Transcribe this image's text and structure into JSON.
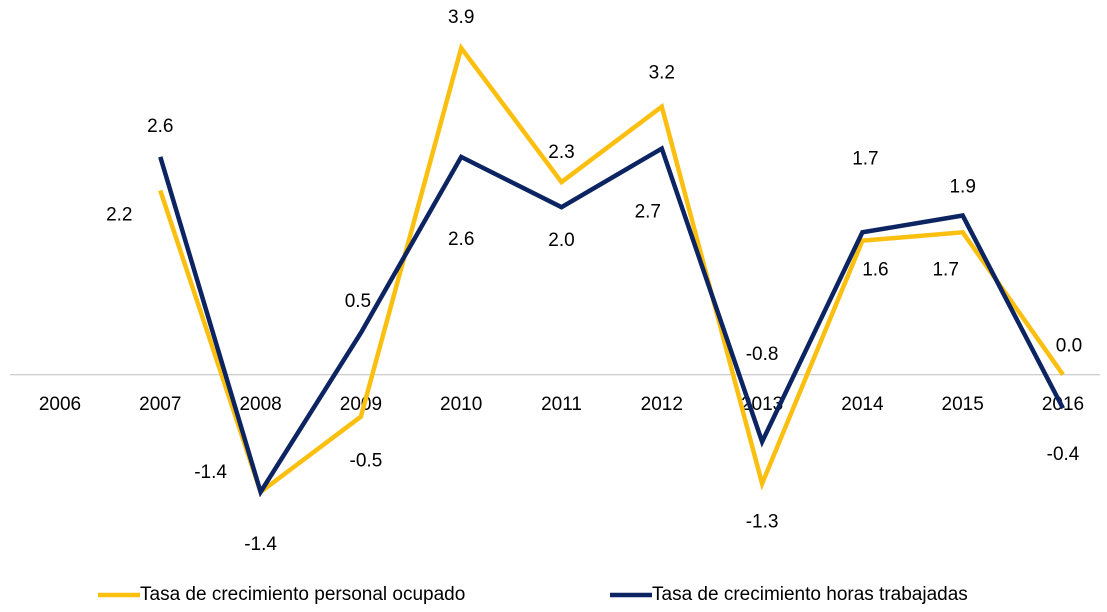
{
  "chart_data": {
    "type": "line",
    "categories": [
      "2006",
      "2007",
      "2008",
      "2009",
      "2010",
      "2011",
      "2012",
      "2013",
      "2014",
      "2015",
      "2016"
    ],
    "series": [
      {
        "name": "Tasa de crecimiento personal ocupado",
        "color": "#fbbf0f",
        "values": [
          null,
          2.2,
          -1.4,
          -0.5,
          3.9,
          2.3,
          3.2,
          -1.3,
          1.6,
          1.7,
          0.0
        ],
        "value_labels": [
          null,
          "2.2",
          "-1.4",
          "-0.5",
          "3.9",
          "2.3",
          "3.2",
          "-1.3",
          "1.6",
          "1.7",
          "0.0"
        ]
      },
      {
        "name": "Tasa de crecimiento horas trabajadas",
        "color": "#0c2461",
        "values": [
          null,
          2.6,
          -1.4,
          0.5,
          2.6,
          2.0,
          2.7,
          -0.8,
          1.7,
          1.9,
          -0.4
        ],
        "value_labels": [
          null,
          "2.6",
          "-1.4",
          "0.5",
          "2.6",
          "2.0",
          "2.7",
          "-0.8",
          "1.7",
          "1.9",
          "-0.4"
        ]
      }
    ]
  }
}
